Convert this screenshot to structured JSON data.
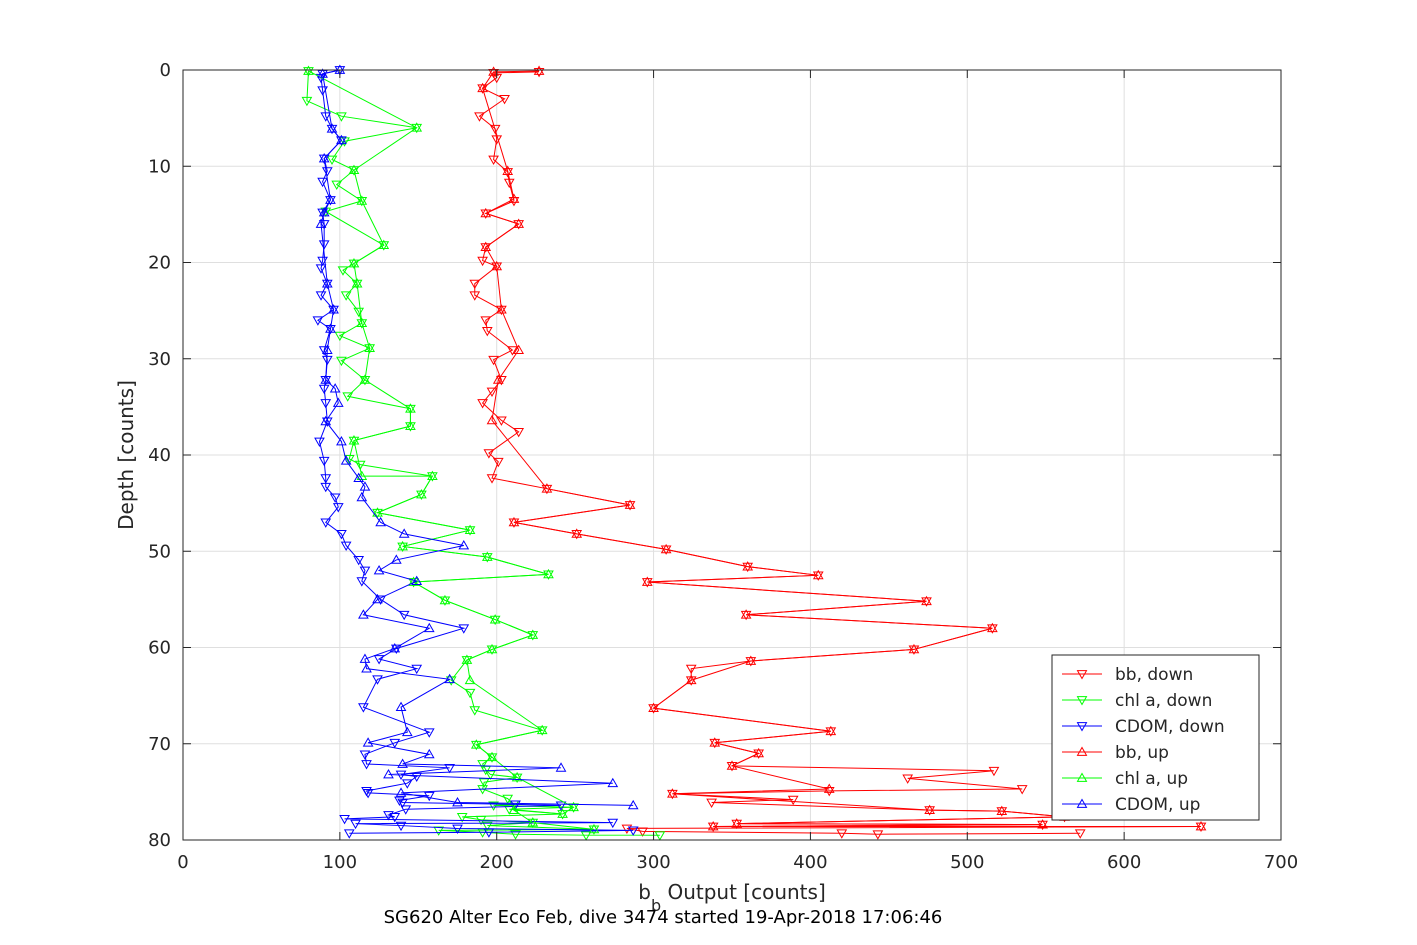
{
  "chart_data": {
    "type": "line",
    "title": "SG620 Alter Eco Feb, dive 3474 started 19-Apr-2018 17:06:46",
    "xlabel_main": "b",
    "xlabel_sub": "b",
    "xlabel_rest": " Output [counts]",
    "ylabel": "Depth [counts]",
    "xlim": [
      0,
      700
    ],
    "ylim": [
      0,
      80
    ],
    "y_reversed": true,
    "grid": true,
    "legend_position": "bottom-right",
    "xticks": [
      0,
      100,
      200,
      300,
      400,
      500,
      600,
      700
    ],
    "yticks": [
      0,
      10,
      20,
      30,
      40,
      50,
      60,
      70,
      80
    ],
    "series": [
      {
        "name": "bb, down",
        "color": "#ff0000",
        "marker": "triangle-down",
        "x": [
          227,
          198,
          200,
          191,
          205,
          189,
          199,
          200,
          198,
          207,
          208,
          211,
          193,
          214,
          193,
          191,
          200,
          186,
          186,
          203,
          193,
          194,
          210,
          198,
          203,
          197,
          191,
          203,
          214,
          195,
          201,
          197,
          232,
          285,
          211,
          251,
          308,
          360,
          405,
          296,
          474,
          359,
          516,
          466,
          362,
          324,
          324,
          300,
          413,
          339,
          367,
          350,
          517,
          462,
          535,
          412,
          312,
          389,
          337,
          476,
          522,
          562,
          353,
          548,
          338,
          649,
          283,
          293,
          420,
          443,
          572
        ],
        "y": [
          0.2,
          0.3,
          0.8,
          1.9,
          3.0,
          4.8,
          6.1,
          7.2,
          9.3,
          10.6,
          11.7,
          13.6,
          14.9,
          16.0,
          18.4,
          19.8,
          20.4,
          22.2,
          23.4,
          24.9,
          26.0,
          27.1,
          29.1,
          30.1,
          32.2,
          33.4,
          34.6,
          36.4,
          37.6,
          39.8,
          40.7,
          42.4,
          43.5,
          45.2,
          47.0,
          48.2,
          49.8,
          51.6,
          52.5,
          53.2,
          55.2,
          56.6,
          58.0,
          60.2,
          61.4,
          62.2,
          63.4,
          66.3,
          68.7,
          69.9,
          71.0,
          72.3,
          72.8,
          73.6,
          74.7,
          74.9,
          75.2,
          75.8,
          76.1,
          76.9,
          77.0,
          77.6,
          78.3,
          78.4,
          78.6,
          78.6,
          78.8,
          79.1,
          79.3,
          79.4,
          79.3
        ]
      },
      {
        "name": "chl a, down",
        "color": "#00ff00",
        "marker": "triangle-down",
        "x": [
          80,
          79,
          101,
          149,
          103,
          95,
          109,
          98,
          114,
          91,
          128,
          109,
          102,
          111,
          104,
          112,
          114,
          100,
          119,
          101,
          116,
          105,
          145,
          145,
          109,
          106,
          113,
          159,
          152,
          124,
          183,
          140,
          194,
          233,
          147,
          167,
          199,
          223,
          197,
          181,
          171,
          183,
          186,
          229,
          187,
          197,
          191,
          193,
          196,
          213,
          192,
          191,
          207,
          211,
          198,
          249,
          208,
          242,
          178,
          190,
          223,
          194,
          262,
          163,
          191,
          212,
          257,
          304
        ],
        "y": [
          0.1,
          3.2,
          4.8,
          6.0,
          7.4,
          9.3,
          10.4,
          11.9,
          13.6,
          14.7,
          18.2,
          20.1,
          20.8,
          22.2,
          23.4,
          25.1,
          26.3,
          27.6,
          28.9,
          30.2,
          32.2,
          33.9,
          35.2,
          37.0,
          38.5,
          40.4,
          41.0,
          42.2,
          44.1,
          46.0,
          47.8,
          49.5,
          50.6,
          52.4,
          53.2,
          55.1,
          57.1,
          58.7,
          60.2,
          61.3,
          63.4,
          64.7,
          66.5,
          68.6,
          70.1,
          71.4,
          72.1,
          72.7,
          73.2,
          73.5,
          74.0,
          74.7,
          75.7,
          76.3,
          76.4,
          76.6,
          76.8,
          77.3,
          77.6,
          77.9,
          78.2,
          78.5,
          78.9,
          79.0,
          79.2,
          79.4,
          79.5,
          79.5
        ]
      },
      {
        "name": "CDOM, down",
        "color": "#0000ff",
        "marker": "triangle-down",
        "x": [
          100,
          89,
          88,
          89,
          91,
          95,
          101,
          90,
          92,
          89,
          94,
          89,
          90,
          90,
          89,
          88,
          92,
          88,
          96,
          86,
          94,
          90,
          92,
          91,
          90,
          91,
          92,
          87,
          90,
          91,
          91,
          97,
          99,
          91,
          101,
          104,
          112,
          116,
          114,
          126,
          141,
          179,
          136,
          125,
          149,
          124,
          115,
          157,
          135,
          116,
          117,
          170,
          139,
          149,
          143,
          117,
          118,
          157,
          138,
          140,
          212,
          241,
          142,
          131,
          135,
          103,
          274,
          110,
          139,
          175,
          287,
          195,
          106
        ],
        "y": [
          0.0,
          0.4,
          0.8,
          2.1,
          4.8,
          6.1,
          7.3,
          9.2,
          10.5,
          11.6,
          13.5,
          14.8,
          16.0,
          18.1,
          19.8,
          20.6,
          22.2,
          23.4,
          24.9,
          26.0,
          26.9,
          29.1,
          30.1,
          32.2,
          33.1,
          34.6,
          36.5,
          38.6,
          40.6,
          42.4,
          43.3,
          44.4,
          45.4,
          47.0,
          48.2,
          49.4,
          50.9,
          52.0,
          53.1,
          55.0,
          56.6,
          58.0,
          60.1,
          61.2,
          62.2,
          63.3,
          66.2,
          68.8,
          69.9,
          71.1,
          72.1,
          72.5,
          73.2,
          73.4,
          74.1,
          74.9,
          75.1,
          75.4,
          75.9,
          76.1,
          76.3,
          76.4,
          76.8,
          77.4,
          77.6,
          77.8,
          78.2,
          78.3,
          78.5,
          78.8,
          79.0,
          79.2,
          79.3
        ]
      },
      {
        "name": "bb, up",
        "color": "#ff0000",
        "marker": "triangle-up",
        "x": [
          227,
          198,
          191,
          207,
          211,
          193,
          214,
          193,
          200,
          203,
          214,
          201,
          197,
          232,
          285,
          211,
          251,
          308,
          360,
          405,
          296,
          474,
          359,
          516,
          466,
          362,
          324,
          300,
          413,
          339,
          367,
          350,
          412,
          312,
          476,
          522,
          562,
          353,
          548,
          338,
          649
        ],
        "y": [
          0.1,
          0.2,
          1.9,
          10.5,
          13.4,
          14.9,
          16.0,
          18.4,
          20.4,
          24.9,
          29.1,
          32.2,
          36.4,
          43.5,
          45.2,
          47.0,
          48.2,
          49.8,
          51.6,
          52.5,
          53.2,
          55.2,
          56.6,
          58.0,
          60.2,
          61.4,
          63.4,
          66.3,
          68.7,
          69.9,
          71.0,
          72.3,
          74.7,
          75.2,
          76.9,
          77.0,
          77.6,
          78.3,
          78.4,
          78.6,
          78.6
        ]
      },
      {
        "name": "chl a, up",
        "color": "#00ff00",
        "marker": "triangle-up",
        "x": [
          80,
          149,
          109,
          114,
          128,
          109,
          111,
          114,
          119,
          116,
          145,
          145,
          109,
          114,
          159,
          152,
          124,
          183,
          140,
          194,
          233,
          147,
          167,
          199,
          223,
          197,
          181,
          183,
          229,
          187,
          197,
          213,
          249,
          242,
          211,
          223,
          262
        ],
        "y": [
          0.1,
          6.0,
          10.4,
          13.6,
          18.2,
          20.1,
          22.2,
          26.3,
          28.9,
          32.2,
          35.2,
          37.0,
          38.5,
          42.2,
          42.2,
          44.1,
          46.0,
          47.8,
          49.5,
          50.6,
          52.4,
          53.2,
          55.1,
          57.1,
          58.7,
          60.2,
          61.3,
          63.4,
          68.6,
          70.1,
          71.4,
          73.5,
          76.6,
          77.3,
          76.9,
          78.2,
          78.9
        ]
      },
      {
        "name": "CDOM, up",
        "color": "#0000ff",
        "marker": "triangle-up",
        "x": [
          100,
          89,
          95,
          101,
          90,
          94,
          90,
          88,
          92,
          96,
          94,
          92,
          91,
          97,
          99,
          91,
          101,
          104,
          112,
          116,
          114,
          126,
          141,
          179,
          136,
          125,
          149,
          124,
          115,
          157,
          135,
          116,
          117,
          170,
          139,
          143,
          118,
          157,
          140,
          241,
          131,
          274,
          139,
          175,
          287
        ],
        "y": [
          0.0,
          0.4,
          6.1,
          7.3,
          9.2,
          13.5,
          14.8,
          16.0,
          22.2,
          24.9,
          26.9,
          29.1,
          32.2,
          33.1,
          34.6,
          36.5,
          38.6,
          40.6,
          42.4,
          43.3,
          44.4,
          47.0,
          48.2,
          49.4,
          50.9,
          52.0,
          53.1,
          55.0,
          56.6,
          58.0,
          60.1,
          61.2,
          62.2,
          63.3,
          66.2,
          68.8,
          69.9,
          71.1,
          72.1,
          72.5,
          73.2,
          74.1,
          75.1,
          76.1,
          76.4
        ]
      }
    ]
  }
}
